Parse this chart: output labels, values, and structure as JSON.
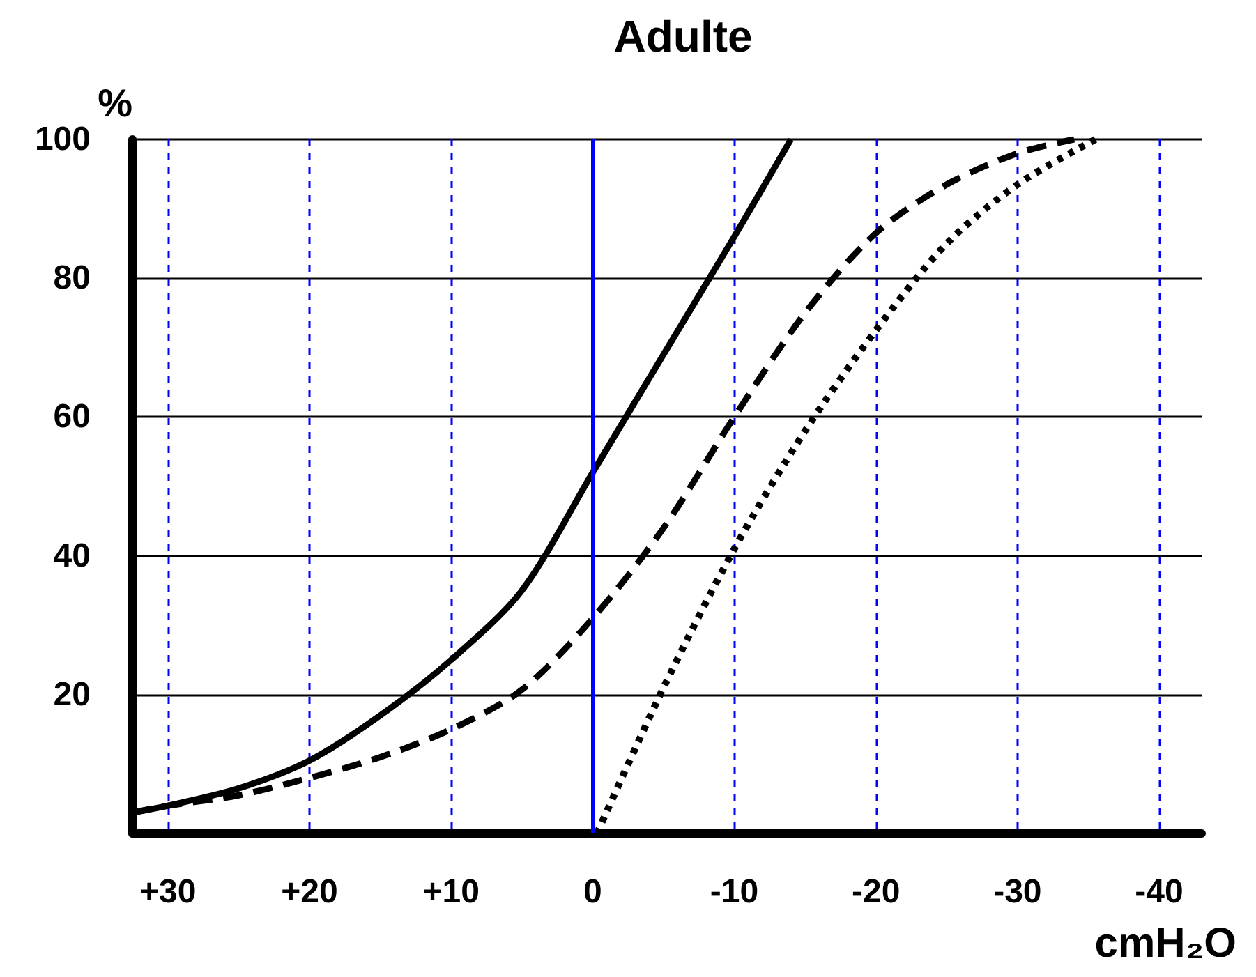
{
  "chart_data": {
    "type": "line",
    "title": "Adulte",
    "xlabel": "cmH₂O",
    "ylabel": "%",
    "xlim": [
      32.5,
      -43
    ],
    "xticks": [
      {
        "value": 30,
        "label": "+30"
      },
      {
        "value": 20,
        "label": "+20"
      },
      {
        "value": 10,
        "label": "+10"
      },
      0,
      -10,
      -20,
      -30,
      -40
    ],
    "ylim": [
      0,
      100
    ],
    "yticks": [
      20,
      40,
      60,
      80,
      100
    ],
    "grid": true,
    "marker": "none",
    "ref_lines": [
      {
        "axis": "x",
        "value": 0,
        "color": "#0000ff",
        "line_style": "solid"
      }
    ],
    "series": [
      {
        "color": "#000000",
        "line_style": "solid",
        "x": [
          32.5,
          30,
          25,
          20,
          15,
          10,
          5,
          0,
          -5,
          -10,
          -14
        ],
        "values": [
          3,
          4,
          6.5,
          10.5,
          17,
          25,
          35,
          52,
          69,
          86,
          100
        ]
      },
      {
        "color": "#000000",
        "line_style": "dashed",
        "x": [
          32.5,
          30,
          25,
          20,
          15,
          10,
          5,
          0,
          -5,
          -10,
          -15,
          -20,
          -25,
          -30,
          -34
        ],
        "values": [
          3,
          4,
          5.5,
          8,
          11,
          15,
          20.7,
          31,
          44,
          60,
          75,
          86.5,
          93.5,
          98,
          100
        ]
      },
      {
        "color": "#000000",
        "line_style": "dotted",
        "x": [
          -0.3,
          -5,
          -10,
          -15,
          -20,
          -25,
          -30,
          -35.5
        ],
        "values": [
          0,
          21,
          41,
          58,
          72.5,
          85,
          93.5,
          100
        ]
      }
    ]
  }
}
